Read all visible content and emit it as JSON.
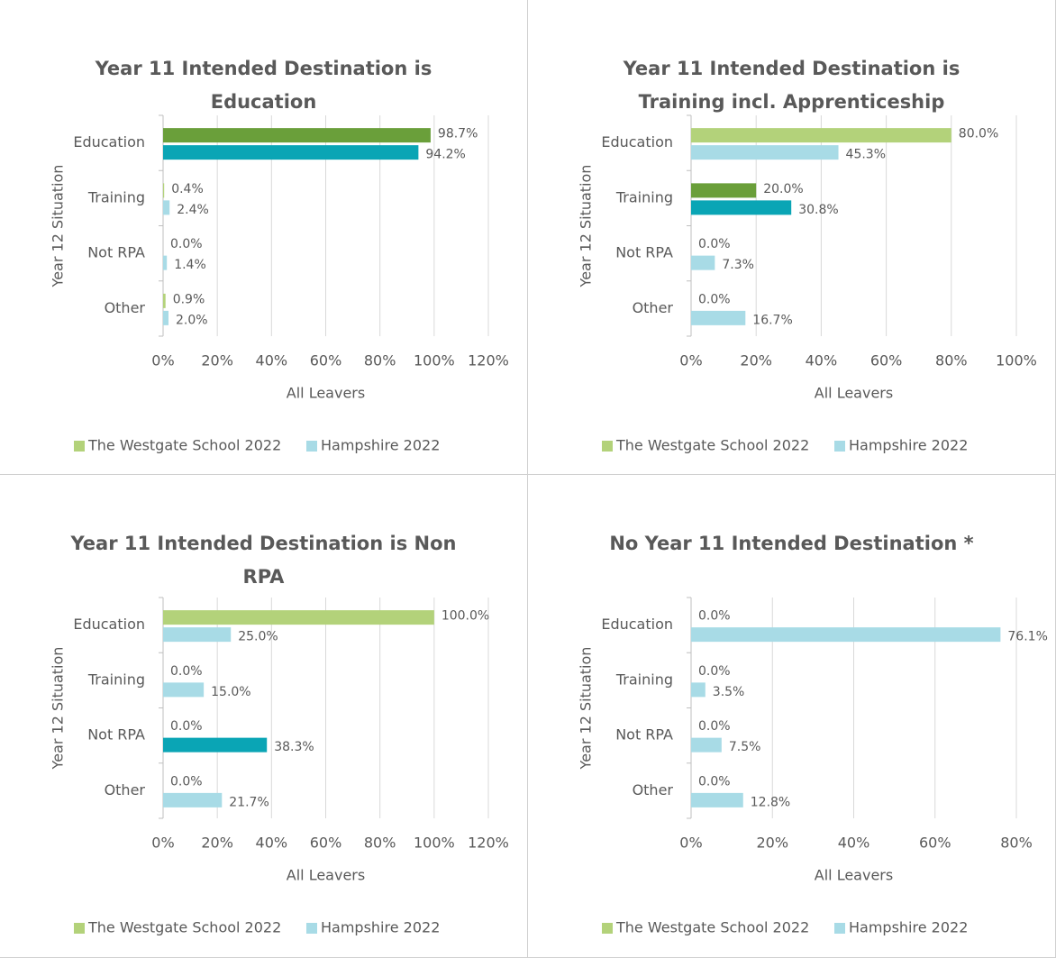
{
  "chart_data": [
    {
      "type": "barh",
      "title": "Year 11 Intended Destination is Education",
      "xlabel": "All Leavers",
      "ylabel": "Year 12 Situation",
      "categories": [
        "Education",
        "Training",
        "Not RPA",
        "Other"
      ],
      "series": [
        {
          "name": "The Westgate School 2022",
          "color": "#b3d27a",
          "colors": [
            "#6a9f3a",
            "#b3d27a",
            "#b3d27a",
            "#b3d27a"
          ],
          "values": [
            98.7,
            0.4,
            0.0,
            0.9
          ],
          "value_labels": [
            "98.7%",
            "0.4%",
            "0.0%",
            "0.9%"
          ]
        },
        {
          "name": "Hampshire 2022",
          "color": "#a8dbe6",
          "colors": [
            "#0aa5b5",
            "#a8dbe6",
            "#a8dbe6",
            "#a8dbe6"
          ],
          "values": [
            94.2,
            2.4,
            1.4,
            2.0
          ],
          "value_labels": [
            "94.2%",
            "2.4%",
            "1.4%",
            "2.0%"
          ]
        }
      ],
      "xlim": [
        0,
        120
      ],
      "xticks": [
        {
          "value": 0,
          "label": "0%"
        },
        {
          "value": 20,
          "label": "20%"
        },
        {
          "value": 40,
          "label": "40%"
        },
        {
          "value": 60,
          "label": "60%"
        },
        {
          "value": 80,
          "label": "80%"
        },
        {
          "value": 100,
          "label": "100%"
        },
        {
          "value": 120,
          "label": "120%"
        }
      ],
      "grid": true,
      "legend": "bottom"
    },
    {
      "type": "barh",
      "title": "Year 11 Intended Destination is Training incl. Apprenticeship",
      "xlabel": "All Leavers",
      "ylabel": "Year 12 Situation",
      "categories": [
        "Education",
        "Training",
        "Not RPA",
        "Other"
      ],
      "series": [
        {
          "name": "The Westgate School 2022",
          "color": "#b3d27a",
          "colors": [
            "#b3d27a",
            "#6a9f3a",
            "#b3d27a",
            "#b3d27a"
          ],
          "values": [
            80.0,
            20.0,
            0.0,
            0.0
          ],
          "value_labels": [
            "80.0%",
            "20.0%",
            "0.0%",
            "0.0%"
          ]
        },
        {
          "name": "Hampshire 2022",
          "color": "#a8dbe6",
          "colors": [
            "#a8dbe6",
            "#0aa5b5",
            "#a8dbe6",
            "#a8dbe6"
          ],
          "values": [
            45.3,
            30.8,
            7.3,
            16.7
          ],
          "value_labels": [
            "45.3%",
            "30.8%",
            "7.3%",
            "16.7%"
          ]
        }
      ],
      "xlim": [
        0,
        100
      ],
      "xticks": [
        {
          "value": 0,
          "label": "0%"
        },
        {
          "value": 20,
          "label": "20%"
        },
        {
          "value": 40,
          "label": "40%"
        },
        {
          "value": 60,
          "label": "60%"
        },
        {
          "value": 80,
          "label": "80%"
        },
        {
          "value": 100,
          "label": "100%"
        }
      ],
      "grid": true,
      "legend": "bottom"
    },
    {
      "type": "barh",
      "title": "Year 11 Intended Destination is Non RPA",
      "xlabel": "All Leavers",
      "ylabel": "Year 12 Situation",
      "categories": [
        "Education",
        "Training",
        "Not RPA",
        "Other"
      ],
      "series": [
        {
          "name": "The Westgate School 2022",
          "color": "#b3d27a",
          "colors": [
            "#b3d27a",
            "#b3d27a",
            "#6a9f3a",
            "#b3d27a"
          ],
          "values": [
            100.0,
            0.0,
            0.0,
            0.0
          ],
          "value_labels": [
            "100.0%",
            "0.0%",
            "0.0%",
            "0.0%"
          ]
        },
        {
          "name": "Hampshire 2022",
          "color": "#a8dbe6",
          "colors": [
            "#a8dbe6",
            "#a8dbe6",
            "#0aa5b5",
            "#a8dbe6"
          ],
          "values": [
            25.0,
            15.0,
            38.3,
            21.7
          ],
          "value_labels": [
            "25.0%",
            "15.0%",
            "38.3%",
            "21.7%"
          ]
        }
      ],
      "xlim": [
        0,
        120
      ],
      "xticks": [
        {
          "value": 0,
          "label": "0%"
        },
        {
          "value": 20,
          "label": "20%"
        },
        {
          "value": 40,
          "label": "40%"
        },
        {
          "value": 60,
          "label": "60%"
        },
        {
          "value": 80,
          "label": "80%"
        },
        {
          "value": 100,
          "label": "100%"
        },
        {
          "value": 120,
          "label": "120%"
        }
      ],
      "grid": true,
      "legend": "bottom"
    },
    {
      "type": "barh",
      "title": "No Year 11 Intended Destination *",
      "xlabel": "All Leavers",
      "ylabel": "Year 12 Situation",
      "categories": [
        "Education",
        "Training",
        "Not RPA",
        "Other"
      ],
      "series": [
        {
          "name": "The Westgate School 2022",
          "color": "#b3d27a",
          "colors": [
            "#b3d27a",
            "#b3d27a",
            "#b3d27a",
            "#b3d27a"
          ],
          "values": [
            0.0,
            0.0,
            0.0,
            0.0
          ],
          "value_labels": [
            "0.0%",
            "0.0%",
            "0.0%",
            "0.0%"
          ]
        },
        {
          "name": "Hampshire 2022",
          "color": "#a8dbe6",
          "colors": [
            "#a8dbe6",
            "#a8dbe6",
            "#a8dbe6",
            "#a8dbe6"
          ],
          "values": [
            76.1,
            3.5,
            7.5,
            12.8
          ],
          "value_labels": [
            "76.1%",
            "3.5%",
            "7.5%",
            "12.8%"
          ]
        }
      ],
      "xlim": [
        0,
        80
      ],
      "xticks": [
        {
          "value": 0,
          "label": "0%"
        },
        {
          "value": 20,
          "label": "20%"
        },
        {
          "value": 40,
          "label": "40%"
        },
        {
          "value": 60,
          "label": "60%"
        },
        {
          "value": 80,
          "label": "80%"
        }
      ],
      "grid": true,
      "legend": "bottom"
    }
  ]
}
